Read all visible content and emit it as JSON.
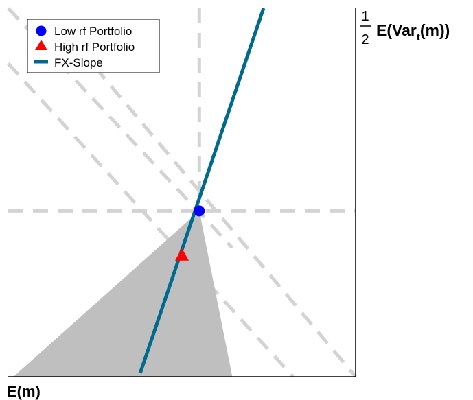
{
  "chart_data": {
    "type": "line",
    "title": "",
    "xlabel": "E(m)",
    "ylabel": {
      "numerator": "1",
      "denominator": "2",
      "prefix": "E(",
      "var": "Var",
      "sub": "t",
      "suffix": "(m))"
    },
    "xlim": [
      0,
      10
    ],
    "ylim": [
      0,
      10
    ],
    "grid": false,
    "legend_position": "top-left",
    "colors": {
      "low_rf": "#0000ff",
      "high_rf": "#ff0000",
      "fx_slope": "#006a8e",
      "shade": "#bfbfbf",
      "guides": "#d3d3d3"
    },
    "series": [
      {
        "name": "Low rf Portfolio",
        "type": "scatter",
        "marker": "circle",
        "points": [
          [
            5.5,
            4.5
          ]
        ]
      },
      {
        "name": "High rf Portfolio",
        "type": "scatter",
        "marker": "triangle",
        "points": [
          [
            5.0,
            3.3
          ]
        ]
      },
      {
        "name": "FX-Slope",
        "type": "line",
        "points": [
          [
            3.8,
            0.1
          ],
          [
            7.35,
            10.0
          ]
        ]
      }
    ],
    "shaded_region": [
      [
        0.15,
        0.0
      ],
      [
        6.45,
        0.0
      ],
      [
        5.5,
        4.5
      ]
    ],
    "guides": [
      {
        "kind": "vertical",
        "x": 5.5
      },
      {
        "kind": "horizontal",
        "y": 4.5
      },
      {
        "kind": "segment",
        "points": [
          [
            0.0,
            10.0
          ],
          [
            6.45,
            3.5
          ]
        ]
      },
      {
        "kind": "segment",
        "points": [
          [
            0.0,
            8.5
          ],
          [
            8.2,
            0.0
          ]
        ]
      },
      {
        "kind": "segment",
        "points": [
          [
            2.5,
            8.4
          ],
          [
            10.0,
            0.0
          ]
        ]
      }
    ]
  }
}
